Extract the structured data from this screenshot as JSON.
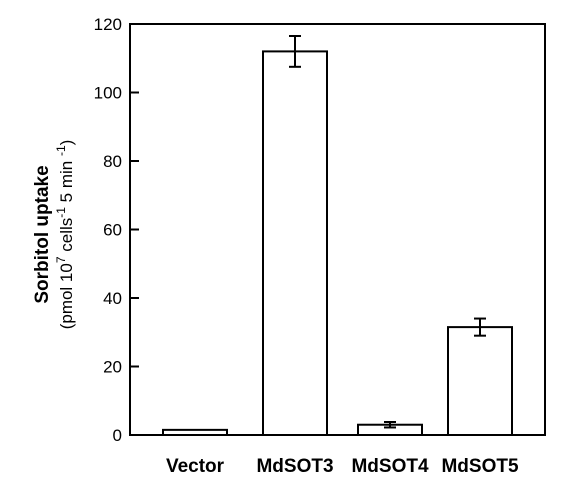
{
  "chart_data": {
    "type": "bar",
    "categories": [
      "Vector",
      "MdSOT3",
      "MdSOT4",
      "MdSOT5"
    ],
    "values": [
      1.5,
      112,
      3,
      31.5
    ],
    "errors": [
      0,
      4.5,
      0.8,
      2.5
    ],
    "ylabel": "Sorbitol uptake",
    "ylabel_unit": {
      "open": "(pmol 10",
      "exp1": "7",
      "mid": " cells",
      "exp2": "-1",
      "mid2": " 5 min ",
      "exp3": "-1",
      "close": ")"
    },
    "ylim": [
      0,
      120
    ],
    "yticks": [
      0,
      20,
      40,
      60,
      80,
      100,
      120
    ],
    "grid": false,
    "legend": "none",
    "bar_fill": "#ffffff",
    "stroke_color": "#000000"
  }
}
